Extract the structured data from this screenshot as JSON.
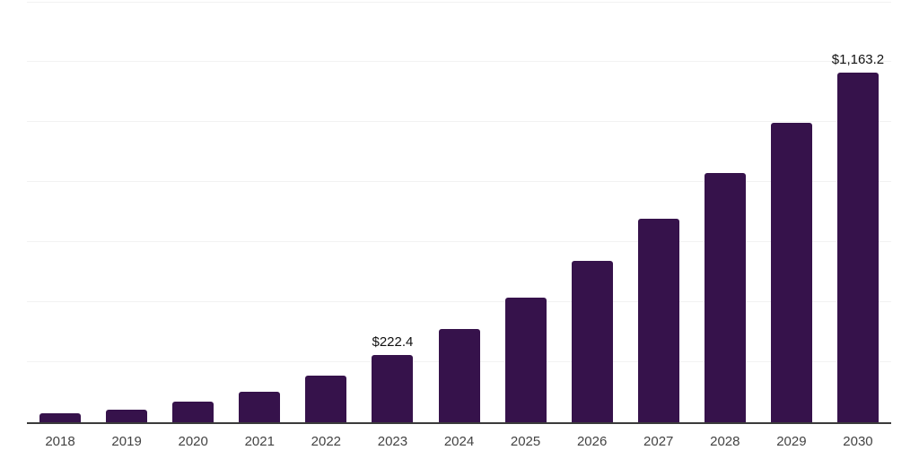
{
  "chart_data": {
    "type": "bar",
    "title": "",
    "xlabel": "",
    "ylabel": "",
    "categories": [
      "2018",
      "2019",
      "2020",
      "2021",
      "2022",
      "2023",
      "2024",
      "2025",
      "2026",
      "2027",
      "2028",
      "2029",
      "2030"
    ],
    "values": [
      30,
      42,
      68,
      102,
      155,
      222.4,
      309,
      415,
      538,
      678,
      830,
      996,
      1163.2
    ],
    "data_labels": {
      "2023": "$222.4",
      "2030": "$1,163.2"
    },
    "ylim": [
      0,
      1400
    ],
    "grid_step": 200,
    "grid": "horizontal-only",
    "legend": "none",
    "y_tick_labels_shown": false
  },
  "style": {
    "bar_color": "#36124b",
    "grid_color": "#f2f2f2",
    "axis_color": "#3b3b3b",
    "tick_label_color": "#434343",
    "data_label_color": "#111111",
    "background": "#ffffff"
  }
}
